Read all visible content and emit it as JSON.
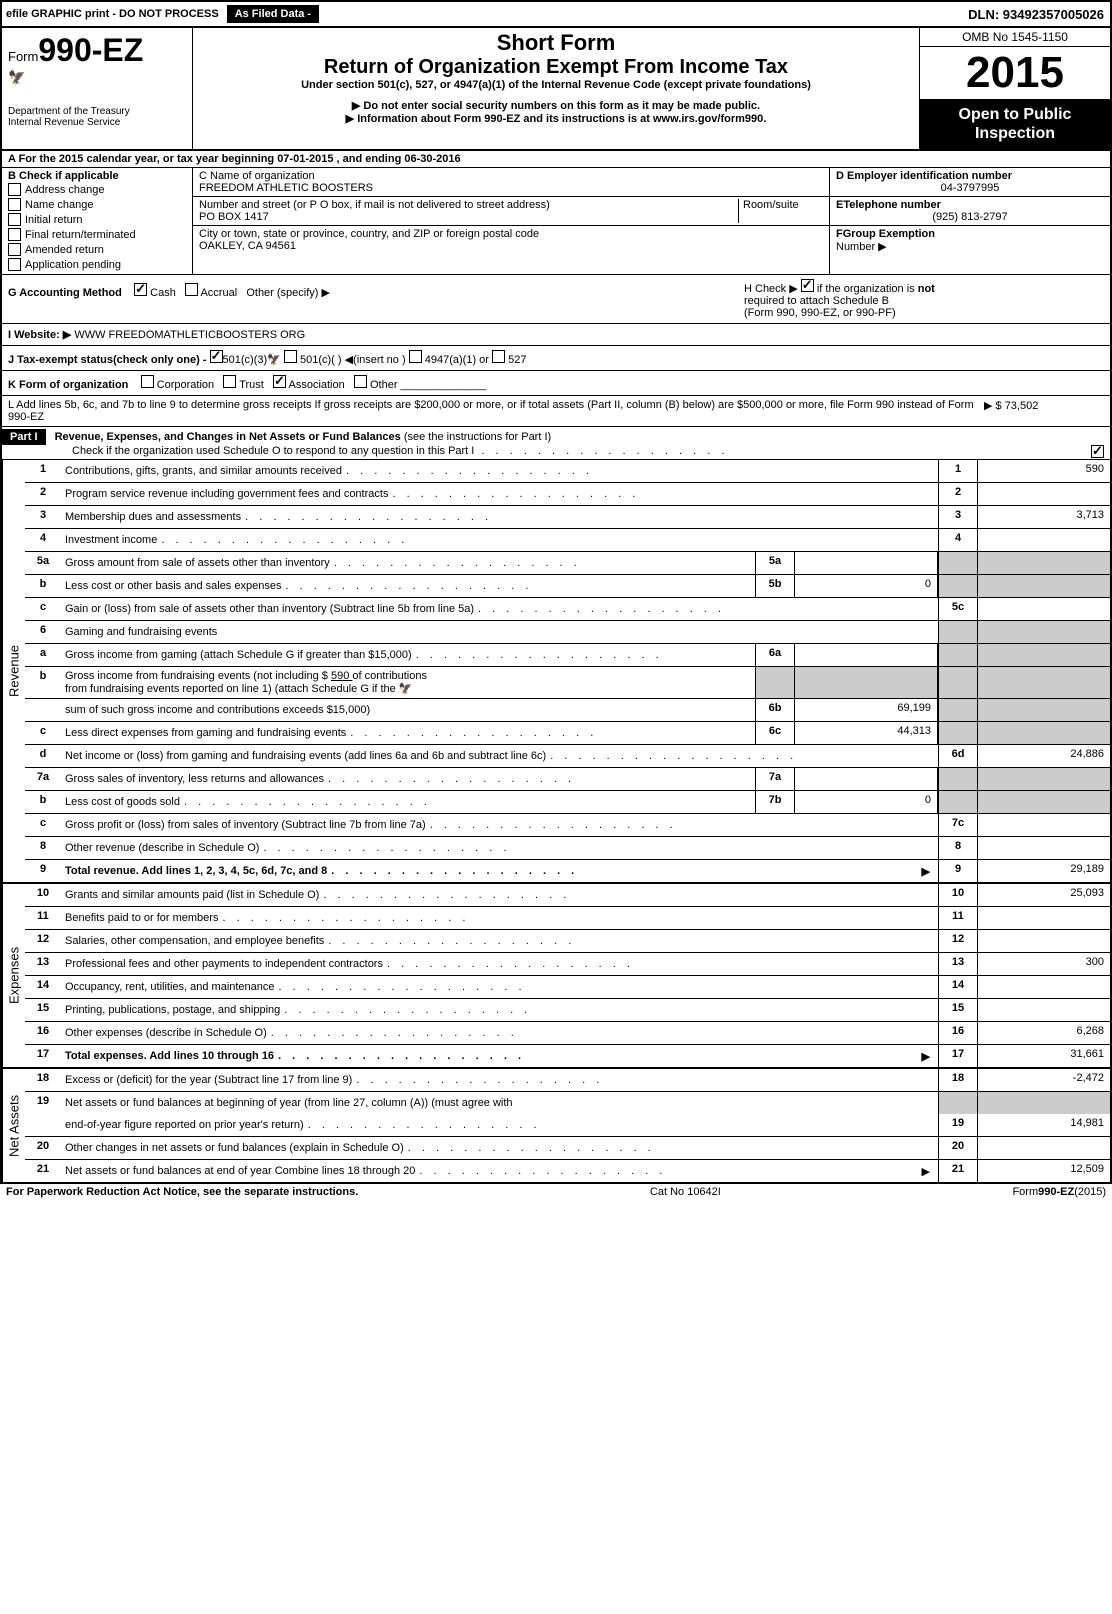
{
  "top": {
    "efile": "efile GRAPHIC print - DO NOT PROCESS",
    "asfiled": "As Filed Data -",
    "dln": "DLN: 93492357005026"
  },
  "header": {
    "form_prefix": "Form",
    "form_num": "990-EZ",
    "dept": "Department of the Treasury",
    "irs": "Internal Revenue Service",
    "short": "Short Form",
    "title": "Return of Organization Exempt From Income Tax",
    "under": "Under section 501(c), 527, or 4947(a)(1) of the Internal Revenue Code (except private foundations)",
    "warn1": "▶ Do not enter social security numbers on this form as it may be made public.",
    "warn2_pre": "▶ Information about Form 990-EZ and its instructions is at ",
    "warn2_link": "www.irs.gov/form990",
    "omb": "OMB No 1545-1150",
    "year": "2015",
    "open1": "Open to Public",
    "open2": "Inspection"
  },
  "rowA": "A  For the 2015 calendar year, or tax year beginning 07-01-2015               , and ending 06-30-2016",
  "colB": {
    "head": "B  Check if applicable",
    "items": [
      "Address change",
      "Name change",
      "Initial return",
      "Final return/terminated",
      "Amended return",
      "Application pending"
    ]
  },
  "colC": {
    "name_lbl": "C Name of organization",
    "name": "FREEDOM ATHLETIC BOOSTERS",
    "addr_lbl": "Number and street (or P  O  box, if mail is not delivered to street address)",
    "room": "Room/suite",
    "addr": "PO BOX 1417",
    "city_lbl": "City or town, state or province, country, and ZIP or foreign postal code",
    "city": "OAKLEY, CA  94561"
  },
  "colD": {
    "ein_lbl": "D Employer identification number",
    "ein": "04-3797995",
    "tel_lbl": "ETelephone number",
    "tel": "(925) 813-2797",
    "grp_lbl": "FGroup Exemption",
    "grp2": "Number    ▶"
  },
  "rowG": {
    "label": "G Accounting Method",
    "cash": "Cash",
    "accrual": "Accrual",
    "other": "Other (specify) ▶"
  },
  "rowH": {
    "text1": "H   Check ▶",
    "text2": "if the organization is",
    "not": "not",
    "text3": "required to attach Schedule B",
    "text4": "(Form 990, 990-EZ, or 990-PF)"
  },
  "rowI_lbl": "I Website: ▶",
  "rowI": "WWW FREEDOMATHLETICBOOSTERS ORG",
  "rowJ": "J Tax-exempt status(check only one) -",
  "rowJ_501c3": "501(c)(3)",
  "rowJ_501c": "501(c)( )  ◀(insert no )",
  "rowJ_4947": "4947(a)(1) or",
  "rowJ_527": "527",
  "rowK_lbl": "K Form of organization",
  "rowK_corp": "Corporation",
  "rowK_trust": "Trust",
  "rowK_assoc": "Association",
  "rowK_other": "Other",
  "rowL": "L Add lines 5b, 6c, and 7b to line 9 to determine gross receipts  If gross receipts are $200,000 or more, or if total assets (Part II, column (B) below) are $500,000 or more, file Form 990 instead of Form 990-EZ",
  "rowL_amt": "▶ $ 73,502",
  "part1": {
    "label": "Part I",
    "title": "Revenue, Expenses, and Changes in Net Assets or Fund Balances",
    "note": "(see the instructions for Part I)",
    "check": "Check if the organization used Schedule O to respond to any question in this Part I"
  },
  "sides": {
    "rev": "Revenue",
    "exp": "Expenses",
    "net": "Net Assets"
  },
  "lines": {
    "l1": {
      "n": "1",
      "d": "Contributions, gifts, grants, and similar amounts received",
      "en": "1",
      "ev": "590"
    },
    "l2": {
      "n": "2",
      "d": "Program service revenue including government fees and contracts",
      "en": "2",
      "ev": ""
    },
    "l3": {
      "n": "3",
      "d": "Membership dues and assessments",
      "en": "3",
      "ev": "3,713"
    },
    "l4": {
      "n": "4",
      "d": "Investment income",
      "en": "4",
      "ev": ""
    },
    "l5a": {
      "n": "5a",
      "d": "Gross amount from sale of assets other than inventory",
      "sn": "5a",
      "sv": ""
    },
    "l5b": {
      "n": "b",
      "d": "Less  cost or other basis and sales expenses",
      "sn": "5b",
      "sv": "0"
    },
    "l5c": {
      "n": "c",
      "d": "Gain or (loss) from sale of assets other than inventory (Subtract line 5b from line 5a)",
      "en": "5c",
      "ev": ""
    },
    "l6": {
      "n": "6",
      "d": "Gaming and fundraising events"
    },
    "l6a": {
      "n": "a",
      "d": "Gross income from gaming (attach Schedule G if greater than $15,000)",
      "sn": "6a",
      "sv": ""
    },
    "l6b": {
      "n": "b",
      "d1": "Gross income from fundraising events (not including $ ",
      "d1u": "  590  ",
      "d1b": "       of contributions",
      "d2": "from fundraising events reported on line 1) (attach Schedule G if the",
      "d3": "sum of such gross income and contributions exceeds $15,000)",
      "sn": "6b",
      "sv": "69,199"
    },
    "l6c": {
      "n": "c",
      "d": "Less  direct expenses from gaming and fundraising events",
      "sn": "6c",
      "sv": "44,313"
    },
    "l6d": {
      "n": "d",
      "d": "Net income or (loss) from gaming and fundraising events (add lines 6a and 6b and subtract line 6c)",
      "en": "6d",
      "ev": "24,886"
    },
    "l7a": {
      "n": "7a",
      "d": "Gross sales of inventory, less returns and allowances",
      "sn": "7a",
      "sv": ""
    },
    "l7b": {
      "n": "b",
      "d": "Less  cost of goods sold",
      "sn": "7b",
      "sv": "0"
    },
    "l7c": {
      "n": "c",
      "d": "Gross profit or (loss) from sales of inventory (Subtract line 7b from line 7a)",
      "en": "7c",
      "ev": ""
    },
    "l8": {
      "n": "8",
      "d": "Other revenue (describe in Schedule O)",
      "en": "8",
      "ev": ""
    },
    "l9": {
      "n": "9",
      "d": "Total revenue. Add lines 1, 2, 3, 4, 5c, 6d, 7c, and 8",
      "en": "9",
      "ev": "29,189",
      "bold": true,
      "arrow": true
    },
    "l10": {
      "n": "10",
      "d": "Grants and similar amounts paid (list in Schedule O)",
      "en": "10",
      "ev": "25,093"
    },
    "l11": {
      "n": "11",
      "d": "Benefits paid to or for members",
      "en": "11",
      "ev": ""
    },
    "l12": {
      "n": "12",
      "d": "Salaries, other compensation, and employee benefits",
      "en": "12",
      "ev": ""
    },
    "l13": {
      "n": "13",
      "d": "Professional fees and other payments to independent contractors",
      "en": "13",
      "ev": "300"
    },
    "l14": {
      "n": "14",
      "d": "Occupancy, rent, utilities, and maintenance",
      "en": "14",
      "ev": ""
    },
    "l15": {
      "n": "15",
      "d": "Printing, publications, postage, and shipping",
      "en": "15",
      "ev": ""
    },
    "l16": {
      "n": "16",
      "d": "Other expenses (describe in Schedule O)",
      "en": "16",
      "ev": "6,268"
    },
    "l17": {
      "n": "17",
      "d": "Total expenses. Add lines 10 through 16",
      "en": "17",
      "ev": "31,661",
      "bold": true,
      "arrow": true
    },
    "l18": {
      "n": "18",
      "d": "Excess or (deficit) for the year (Subtract line 17 from line 9)",
      "en": "18",
      "ev": "-2,472"
    },
    "l19": {
      "n": "19",
      "d1": "Net assets or fund balances at beginning of year (from line 27, column (A)) (must agree with",
      "d2": "end-of-year figure reported on prior year's return)",
      "en": "19",
      "ev": "14,981"
    },
    "l20": {
      "n": "20",
      "d": "Other changes in net assets or fund balances (explain in Schedule O)",
      "en": "20",
      "ev": ""
    },
    "l21": {
      "n": "21",
      "d": "Net assets or fund balances at end of year  Combine lines 18 through 20",
      "en": "21",
      "ev": "12,509",
      "arrow": true
    }
  },
  "footer": {
    "left": "For Paperwork Reduction Act Notice, see the separate instructions.",
    "mid": "Cat  No  10642I",
    "right": "Form",
    "rightb": "990-EZ",
    "righty": "(2015)"
  }
}
